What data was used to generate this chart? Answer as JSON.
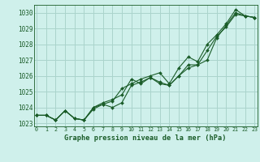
{
  "title": "Graphe pression niveau de la mer (hPa)",
  "background_color": "#cff0eb",
  "grid_color": "#aad4cc",
  "line_color": "#1a5c28",
  "x_ticks": [
    0,
    1,
    2,
    3,
    4,
    5,
    6,
    7,
    8,
    9,
    10,
    11,
    12,
    13,
    14,
    15,
    16,
    17,
    18,
    19,
    20,
    21,
    22,
    23
  ],
  "ylim": [
    1022.8,
    1030.5
  ],
  "yticks": [
    1023,
    1024,
    1025,
    1026,
    1027,
    1028,
    1029,
    1030
  ],
  "series": [
    [
      1023.5,
      1023.5,
      1023.2,
      1023.8,
      1023.3,
      1023.2,
      1023.9,
      1024.2,
      1024.0,
      1024.3,
      1025.4,
      1025.6,
      1025.9,
      1025.5,
      1025.4,
      1026.0,
      1026.5,
      1026.7,
      1027.6,
      1028.5,
      1029.1,
      1029.9,
      1029.8,
      1029.7
    ],
    [
      1023.5,
      1023.5,
      1023.2,
      1023.8,
      1023.3,
      1023.2,
      1024.0,
      1024.3,
      1024.5,
      1024.8,
      1025.8,
      1025.5,
      1025.9,
      1025.6,
      1025.4,
      1026.0,
      1026.7,
      1026.7,
      1027.0,
      1028.4,
      1029.2,
      1030.0,
      1029.8,
      1029.7
    ],
    [
      1023.5,
      1023.5,
      1023.2,
      1023.8,
      1023.3,
      1023.2,
      1024.0,
      1024.2,
      1024.4,
      1025.2,
      1025.5,
      1025.8,
      1026.0,
      1026.2,
      1025.5,
      1026.5,
      1027.2,
      1026.9,
      1028.0,
      1028.6,
      1029.3,
      1030.2,
      1029.8,
      1029.7
    ]
  ]
}
